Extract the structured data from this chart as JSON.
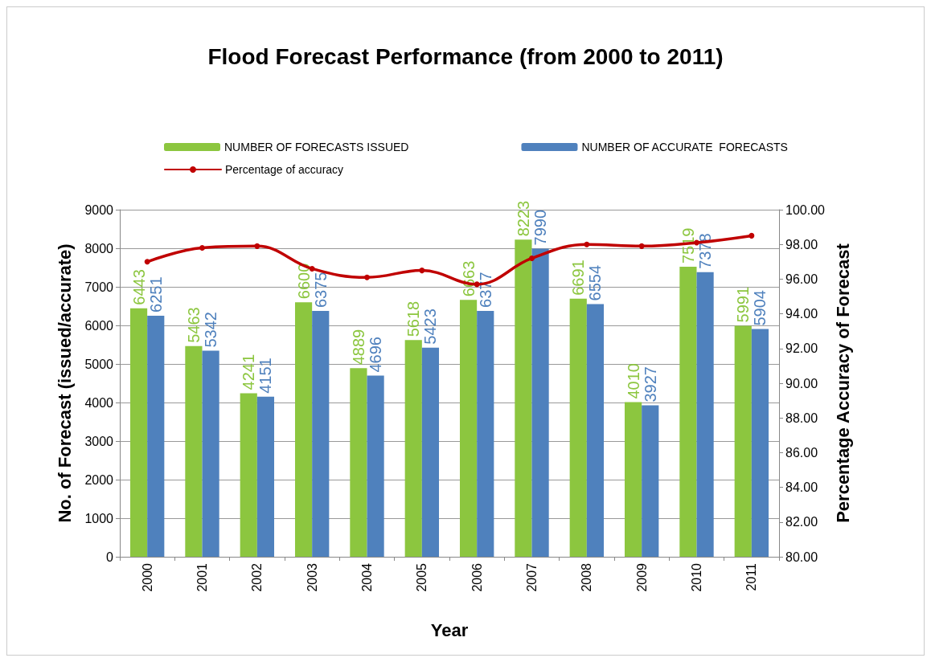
{
  "chart_data": {
    "type": "bar",
    "title": "Flood Forecast Performance (from 2000 to 2011)",
    "xlabel": "Year",
    "ylabel": "No. of Forecast (issued/accurate)",
    "y2label": "Percentage Accuracy of Forecast",
    "categories": [
      "2000",
      "2001",
      "2002",
      "2003",
      "2004",
      "2005",
      "2006",
      "2007",
      "2008",
      "2009",
      "2010",
      "2011"
    ],
    "series": [
      {
        "name": "NUMBER OF FORECASTS ISSUED",
        "color": "#8cc63f",
        "values": [
          6443,
          5463,
          4241,
          6600,
          4889,
          5618,
          6663,
          8223,
          6691,
          4010,
          7519,
          5991
        ],
        "value_labels": [
          "6443",
          "5463",
          "4241",
          "6600",
          "4889",
          "5618",
          "6663",
          "8223",
          "6691",
          "4010",
          "7519",
          "5991"
        ]
      },
      {
        "name": "NUMBER OF ACCURATE  FORECASTS",
        "color": "#4f81bd",
        "values": [
          6251,
          5342,
          4151,
          6375,
          4696,
          5423,
          6377,
          7990,
          6554,
          3927,
          7378,
          5904
        ],
        "value_labels": [
          "6251",
          "5342",
          "4151",
          "6375",
          "4696",
          "5423",
          "6377",
          "7990",
          "6554",
          "3927",
          "7378",
          "5904"
        ]
      },
      {
        "name": "Percentage of accuracy",
        "type": "line",
        "axis": "y2",
        "color": "#c00000",
        "values": [
          97.0,
          97.8,
          97.9,
          96.6,
          96.1,
          96.5,
          95.7,
          97.2,
          98.0,
          97.9,
          98.1,
          98.5
        ]
      }
    ],
    "ylim": [
      0,
      9000
    ],
    "yticks": [
      0,
      1000,
      2000,
      3000,
      4000,
      5000,
      6000,
      7000,
      8000,
      9000
    ],
    "y2lim": [
      80,
      100
    ],
    "y2ticks": [
      {
        "value": 80,
        "label": "80.00"
      },
      {
        "value": 82,
        "label": "82.00"
      },
      {
        "value": 84,
        "label": "84.00"
      },
      {
        "value": 86,
        "label": "86.00"
      },
      {
        "value": 88,
        "label": "88.00"
      },
      {
        "value": 90,
        "label": "90.00"
      },
      {
        "value": 92,
        "label": "92.00"
      },
      {
        "value": 94,
        "label": "94.00"
      },
      {
        "value": 96,
        "label": "96.00"
      },
      {
        "value": 98,
        "label": "98.00"
      },
      {
        "value": 100,
        "label": "100.00"
      }
    ],
    "grid": "y",
    "legend": "top",
    "marker": "circle"
  }
}
